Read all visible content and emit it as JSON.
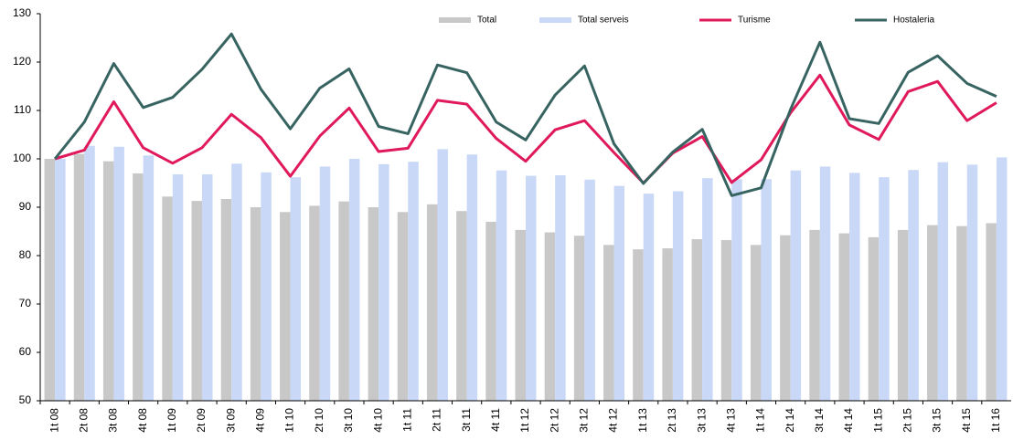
{
  "chart_data": {
    "type": "bar",
    "categories": [
      "1t 08",
      "2t 08",
      "3t 08",
      "4t 08",
      "1t 09",
      "2t 09",
      "3t 09",
      "4t 09",
      "1t 10",
      "2t 10",
      "3t 10",
      "4t 10",
      "1t 11",
      "2t 11",
      "3t 11",
      "4t 11",
      "1t 12",
      "2t 12",
      "3t 12",
      "4t 12",
      "1t 13",
      "2t 13",
      "3t 13",
      "4t 13",
      "1t 14",
      "2t 14",
      "3t 14",
      "4t 14",
      "1t 15",
      "2t 15",
      "3t 15",
      "4t 15",
      "1t 16"
    ],
    "series": [
      {
        "name": "Total",
        "type": "bar",
        "color": "#c8c8c8",
        "values": [
          100,
          101,
          99.5,
          97,
          92.2,
          91.3,
          91.7,
          90,
          89,
          90.3,
          91.2,
          90,
          89,
          90.6,
          89.2,
          87,
          85.3,
          84.8,
          84.1,
          82.2,
          81.3,
          81.5,
          83.4,
          83.2,
          82.2,
          84.2,
          85.3,
          84.6,
          83.8,
          85.3,
          86.3,
          86.1,
          86.7
        ]
      },
      {
        "name": "Total serveis",
        "type": "bar",
        "color": "#c9d8f7",
        "values": [
          100,
          102.7,
          102.5,
          100.7,
          96.8,
          96.8,
          99,
          97.2,
          96.2,
          98.4,
          100,
          98.9,
          99.4,
          102,
          100.9,
          97.6,
          96.5,
          96.6,
          95.7,
          94.4,
          92.8,
          93.3,
          96,
          95.8,
          95.8,
          97.6,
          98.4,
          97.1,
          96.2,
          97.7,
          99.3,
          98.8,
          100.3
        ]
      },
      {
        "name": "Turisme",
        "type": "line",
        "color": "#e0195a",
        "values": [
          100,
          101.8,
          111.8,
          102.3,
          99.1,
          102.3,
          109.2,
          104.4,
          96.4,
          104.7,
          110.5,
          101.5,
          102.2,
          112.1,
          111.3,
          104.2,
          99.5,
          106,
          107.9,
          101.3,
          95,
          101.2,
          104.6,
          95.1,
          99.8,
          109.5,
          117.3,
          107,
          104,
          113.9,
          116,
          107.9,
          111.6
        ]
      },
      {
        "name": "Hostaleria",
        "type": "line",
        "color": "#376461",
        "values": [
          100,
          107.6,
          119.7,
          110.6,
          112.7,
          118.5,
          125.8,
          114.4,
          106.2,
          114.6,
          118.6,
          106.7,
          105.2,
          119.4,
          117.8,
          107.6,
          103.9,
          113.2,
          119.2,
          103.1,
          94.9,
          101.4,
          106.1,
          92.4,
          94,
          110.2,
          124.1,
          108.3,
          107.3,
          117.9,
          121.3,
          115.6,
          112.9
        ]
      }
    ],
    "ylim": [
      50,
      130
    ],
    "yticks": [
      50,
      60,
      70,
      80,
      90,
      100,
      110,
      120,
      130
    ],
    "legend": "top"
  }
}
